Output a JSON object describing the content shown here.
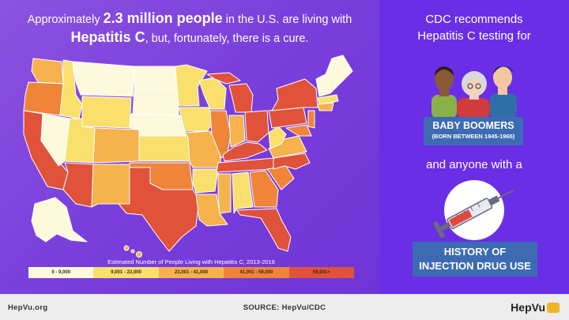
{
  "headline": {
    "part1": "Approximately ",
    "bold1": "2.3 million people",
    "part2": " in the U.S. are living with ",
    "bold2": "Hepatitis C",
    "part3": ", but, fortunately, there is a cure."
  },
  "legend": {
    "title": "Estimated Number of People Living with Hepatitis C, 2013-2016",
    "items": [
      {
        "label": "0 - 9,000",
        "color": "#fdf9dc"
      },
      {
        "label": "9,001 - 23,000",
        "color": "#f9e06c"
      },
      {
        "label": "23,001 - 41,000",
        "color": "#f6b24c"
      },
      {
        "label": "41,001 - 59,000",
        "color": "#f08438"
      },
      {
        "label": "59,001+",
        "color": "#e0523a"
      }
    ]
  },
  "right": {
    "rec_line1": "CDC recommends",
    "rec_line2": "Hepatitis C testing for",
    "boomers_title": "BABY BOOMERS",
    "boomers_sub": "(BORN BETWEEN 1945-1965)",
    "anyone": "and anyone with a",
    "history_line1": "HISTORY OF",
    "history_line2": "INJECTION DRUG USE"
  },
  "footer": {
    "site": "HepVu.org",
    "source": "SOURCE: HepVu/CDC",
    "logo": "HepVu"
  },
  "colors": {
    "left_bg": "#7a40dc",
    "right_bg": "#6a2ee6",
    "box_blue": "#3d6bb3"
  }
}
